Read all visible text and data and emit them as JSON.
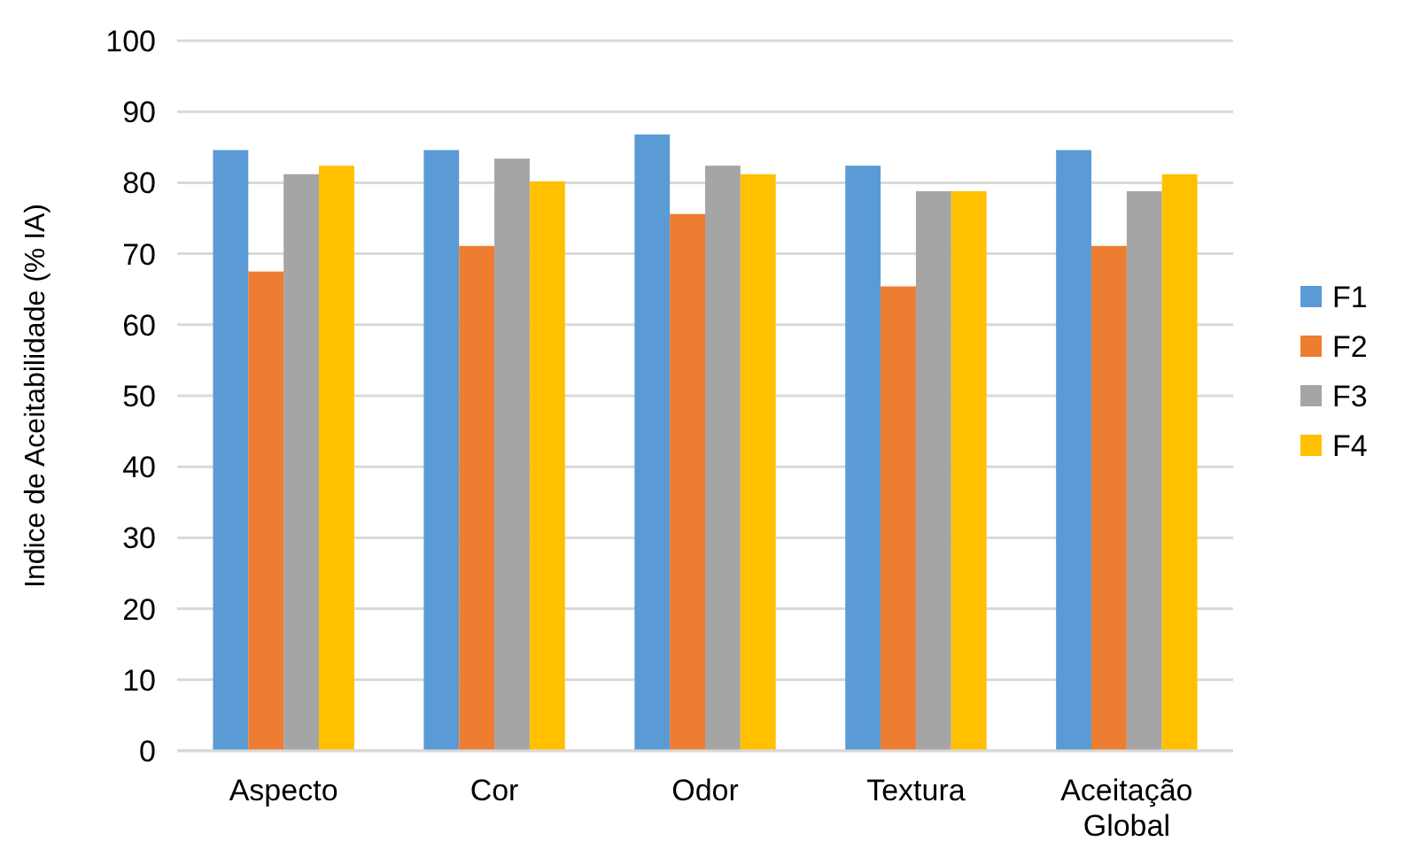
{
  "chart_data": {
    "type": "bar",
    "ylabel": "Indice de Aceitabilidade (% IA)",
    "categories": [
      "Aspecto",
      "Cor",
      "Odor",
      "Textura",
      "Aceitação Global"
    ],
    "series": [
      {
        "name": "F1",
        "color": "#5b9bd5",
        "values": [
          84.6,
          84.6,
          86.8,
          82.4,
          84.6
        ]
      },
      {
        "name": "F2",
        "color": "#ed7d31",
        "values": [
          67.5,
          71.1,
          75.6,
          65.4,
          71.1
        ]
      },
      {
        "name": "F3",
        "color": "#a5a5a5",
        "values": [
          81.2,
          83.4,
          82.4,
          78.8,
          78.8
        ]
      },
      {
        "name": "F4",
        "color": "#ffc000",
        "values": [
          82.4,
          80.2,
          81.2,
          78.8,
          81.2
        ]
      }
    ],
    "ylim": [
      0,
      100
    ],
    "yticks": [
      0,
      10,
      20,
      30,
      40,
      50,
      60,
      70,
      80,
      90,
      100
    ],
    "grid": "y",
    "legend": "right"
  }
}
